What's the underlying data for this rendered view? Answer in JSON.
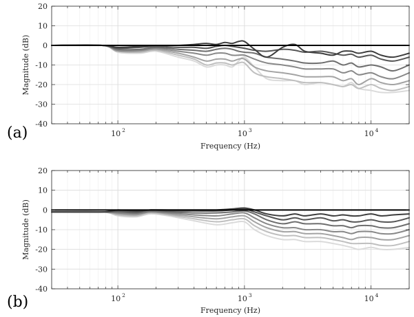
{
  "chart_data": [
    {
      "type": "line",
      "panel_label": "(a)",
      "xlabel": "Frequency (Hz)",
      "ylabel": "Magnitude (dB)",
      "xscale": "log",
      "xlim": [
        30,
        20000
      ],
      "ylim": [
        -40,
        20
      ],
      "yticks": [
        20,
        10,
        0,
        -10,
        -20,
        -30,
        -40
      ],
      "xticks": [
        {
          "base": "10",
          "exp": "2",
          "value": 100
        },
        {
          "base": "10",
          "exp": "3",
          "value": 1000
        },
        {
          "base": "10",
          "exp": "4",
          "value": 10000
        }
      ],
      "grid": true,
      "series": [
        {
          "color": "#000000",
          "x": [
            30,
            20000
          ],
          "y": [
            0,
            0
          ]
        },
        {
          "color": "#3d3d3d",
          "x": [
            30,
            75,
            100,
            150,
            200,
            300,
            400,
            500,
            600,
            700,
            800,
            900,
            1000,
            1200,
            1500,
            2000,
            2500,
            3000,
            4000,
            5000,
            6000,
            7000,
            8000,
            10000,
            12000,
            15000,
            20000
          ],
          "y": [
            0,
            0,
            -1,
            -0.5,
            0,
            0,
            0.5,
            1,
            0.5,
            1.5,
            1,
            2,
            2,
            -2,
            -6,
            -1,
            0.5,
            -3,
            -4,
            -5,
            -3,
            -3,
            -4,
            -3,
            -5,
            -6,
            -4
          ]
        },
        {
          "color": "#555555",
          "x": [
            30,
            75,
            100,
            150,
            200,
            300,
            400,
            500,
            600,
            700,
            800,
            900,
            1000,
            1200,
            1500,
            2000,
            2500,
            3000,
            4000,
            5000,
            6000,
            7000,
            8000,
            10000,
            12000,
            15000,
            20000
          ],
          "y": [
            0,
            0,
            -1.5,
            -1,
            -0.5,
            -1,
            -1,
            -1.5,
            -0.5,
            0,
            -0.5,
            -1,
            -1.5,
            -2.5,
            -3,
            -2,
            -2.5,
            -3.5,
            -3,
            -4,
            -5,
            -4.5,
            -6,
            -5,
            -7,
            -8,
            -6
          ]
        },
        {
          "color": "#6e6e6e",
          "x": [
            30,
            75,
            100,
            150,
            200,
            300,
            400,
            500,
            600,
            700,
            800,
            900,
            1000,
            1200,
            1500,
            2000,
            2500,
            3000,
            4000,
            5000,
            6000,
            7000,
            8000,
            10000,
            12000,
            15000,
            20000
          ],
          "y": [
            0,
            0,
            -2,
            -2,
            -1,
            -2,
            -2.5,
            -3,
            -2,
            -1.5,
            -2,
            -3,
            -3.5,
            -4,
            -6,
            -7,
            -8,
            -9,
            -9,
            -8,
            -10,
            -9,
            -11,
            -10,
            -11,
            -13,
            -10
          ]
        },
        {
          "color": "#888888",
          "x": [
            30,
            75,
            100,
            150,
            200,
            300,
            400,
            500,
            600,
            700,
            800,
            900,
            1000,
            1200,
            1500,
            2000,
            2500,
            3000,
            4000,
            5000,
            6000,
            7000,
            8000,
            10000,
            12000,
            15000,
            20000
          ],
          "y": [
            0,
            0,
            -2.5,
            -2.5,
            -1.5,
            -3,
            -4,
            -5,
            -4,
            -4,
            -5,
            -5,
            -5,
            -7,
            -9,
            -10,
            -11,
            -12,
            -12,
            -12,
            -14,
            -13,
            -15,
            -14,
            -16,
            -17,
            -14
          ]
        },
        {
          "color": "#a3a3a3",
          "x": [
            30,
            75,
            100,
            150,
            200,
            300,
            400,
            500,
            600,
            700,
            800,
            900,
            1000,
            1200,
            1500,
            2000,
            2500,
            3000,
            4000,
            5000,
            6000,
            7000,
            8000,
            10000,
            12000,
            15000,
            20000
          ],
          "y": [
            0,
            0,
            -3,
            -3,
            -2,
            -4,
            -6,
            -8,
            -7,
            -7,
            -8,
            -7,
            -7,
            -11,
            -13,
            -14,
            -15,
            -16,
            -16,
            -16,
            -18,
            -17,
            -20,
            -17,
            -19,
            -20,
            -18
          ]
        },
        {
          "color": "#bfbfbf",
          "x": [
            30,
            75,
            100,
            150,
            200,
            300,
            400,
            500,
            600,
            700,
            800,
            900,
            1000,
            1200,
            1500,
            2000,
            2500,
            3000,
            4000,
            5000,
            6000,
            7000,
            8000,
            10000,
            12000,
            15000,
            20000
          ],
          "y": [
            0,
            0,
            -3,
            -3.5,
            -2.5,
            -5,
            -7,
            -10,
            -9,
            -9,
            -10,
            -9,
            -9,
            -14,
            -16,
            -17,
            -18,
            -19,
            -19,
            -20,
            -21,
            -20,
            -22,
            -20,
            -22,
            -23,
            -21
          ]
        },
        {
          "color": "#dadada",
          "x": [
            30,
            75,
            100,
            150,
            200,
            300,
            400,
            500,
            600,
            700,
            800,
            900,
            1000,
            1200,
            1500,
            2000,
            2500,
            3000,
            4000,
            5000,
            6000,
            7000,
            8000,
            10000,
            12000,
            15000,
            20000
          ],
          "y": [
            0,
            0,
            -3.5,
            -4,
            -3,
            -6,
            -8,
            -11,
            -10,
            -10,
            -11,
            -8,
            -6,
            -11,
            -17,
            -18,
            -18,
            -20,
            -19,
            -20,
            -21,
            -19,
            -22,
            -23,
            -24,
            -24,
            -23
          ]
        }
      ]
    },
    {
      "type": "line",
      "panel_label": "(b)",
      "xlabel": "Frequency (Hz)",
      "ylabel": "Magnitude (dB)",
      "xscale": "log",
      "xlim": [
        30,
        20000
      ],
      "ylim": [
        -40,
        20
      ],
      "yticks": [
        20,
        10,
        0,
        -10,
        -20,
        -30,
        -40
      ],
      "xticks": [
        {
          "base": "10",
          "exp": "2",
          "value": 100
        },
        {
          "base": "10",
          "exp": "3",
          "value": 1000
        },
        {
          "base": "10",
          "exp": "4",
          "value": 10000
        }
      ],
      "grid": true,
      "series": [
        {
          "color": "#000000",
          "x": [
            30,
            20000
          ],
          "y": [
            0,
            0
          ]
        },
        {
          "color": "#3d3d3d",
          "x": [
            30,
            75,
            100,
            140,
            180,
            250,
            400,
            600,
            800,
            1000,
            1200,
            1500,
            2000,
            2500,
            3000,
            4000,
            5000,
            6000,
            7000,
            8000,
            10000,
            12000,
            15000,
            20000
          ],
          "y": [
            -1,
            -1,
            0,
            -0.5,
            0,
            0,
            0,
            0,
            0.5,
            1,
            0,
            -2,
            -3,
            -2,
            -3,
            -2,
            -3,
            -2.5,
            -3,
            -3,
            -2,
            -3,
            -2.5,
            -2
          ]
        },
        {
          "color": "#555555",
          "x": [
            30,
            75,
            100,
            140,
            180,
            250,
            400,
            600,
            800,
            1000,
            1200,
            1500,
            2000,
            2500,
            3000,
            4000,
            5000,
            6000,
            7000,
            8000,
            10000,
            12000,
            15000,
            20000
          ],
          "y": [
            -1,
            -1,
            -0.5,
            -1,
            0,
            -0.5,
            -0.5,
            -0.5,
            0,
            0.5,
            -1,
            -3,
            -5,
            -4,
            -5,
            -4,
            -5.5,
            -5,
            -6,
            -6,
            -5,
            -6,
            -6,
            -4
          ]
        },
        {
          "color": "#6e6e6e",
          "x": [
            30,
            75,
            100,
            140,
            180,
            250,
            400,
            600,
            800,
            1000,
            1200,
            1500,
            2000,
            2500,
            3000,
            4000,
            5000,
            6000,
            7000,
            8000,
            10000,
            12000,
            15000,
            20000
          ],
          "y": [
            -1,
            -1,
            -1,
            -1.5,
            -0.5,
            -1,
            -1.5,
            -1.5,
            -1,
            -0.5,
            -2,
            -5,
            -7,
            -6,
            -7,
            -7,
            -8,
            -8,
            -9,
            -8,
            -8,
            -9,
            -9,
            -7
          ]
        },
        {
          "color": "#888888",
          "x": [
            30,
            75,
            100,
            140,
            180,
            250,
            400,
            600,
            800,
            1000,
            1200,
            1500,
            2000,
            2500,
            3000,
            4000,
            5000,
            6000,
            7000,
            8000,
            10000,
            12000,
            15000,
            20000
          ],
          "y": [
            -1,
            -1,
            -1.5,
            -2,
            -1,
            -1.5,
            -2.5,
            -3,
            -2,
            -1.5,
            -4,
            -7,
            -9,
            -9,
            -10,
            -10,
            -11,
            -11,
            -12,
            -11,
            -11,
            -12,
            -12,
            -10
          ]
        },
        {
          "color": "#a3a3a3",
          "x": [
            30,
            75,
            100,
            140,
            180,
            250,
            400,
            600,
            800,
            1000,
            1200,
            1500,
            2000,
            2500,
            3000,
            4000,
            5000,
            6000,
            7000,
            8000,
            10000,
            12000,
            15000,
            20000
          ],
          "y": [
            -1,
            -1,
            -2,
            -2.5,
            -1,
            -2,
            -3.5,
            -4.5,
            -3.5,
            -3,
            -6,
            -9,
            -11,
            -11,
            -12,
            -12,
            -13,
            -14,
            -15,
            -14,
            -14,
            -15,
            -15,
            -13
          ]
        },
        {
          "color": "#bfbfbf",
          "x": [
            30,
            75,
            100,
            140,
            180,
            250,
            400,
            600,
            800,
            1000,
            1200,
            1500,
            2000,
            2500,
            3000,
            4000,
            5000,
            6000,
            7000,
            8000,
            10000,
            12000,
            15000,
            20000
          ],
          "y": [
            -1,
            -1,
            -2.5,
            -3,
            -1.5,
            -2.5,
            -4.5,
            -6,
            -5,
            -4.5,
            -8,
            -11,
            -13,
            -13,
            -14,
            -14,
            -15,
            -16,
            -17,
            -17,
            -17,
            -18,
            -18,
            -16
          ]
        },
        {
          "color": "#dadada",
          "x": [
            30,
            75,
            100,
            140,
            180,
            250,
            400,
            600,
            800,
            1000,
            1200,
            1500,
            2000,
            2500,
            3000,
            4000,
            5000,
            6000,
            7000,
            8000,
            10000,
            12000,
            15000,
            20000
          ],
          "y": [
            -1,
            -1,
            -3,
            -3.5,
            -2,
            -3,
            -5.5,
            -7.5,
            -6.5,
            -6,
            -10,
            -13,
            -15,
            -15,
            -16,
            -16,
            -17,
            -18,
            -19,
            -20,
            -19,
            -20,
            -20,
            -19
          ]
        }
      ]
    }
  ]
}
